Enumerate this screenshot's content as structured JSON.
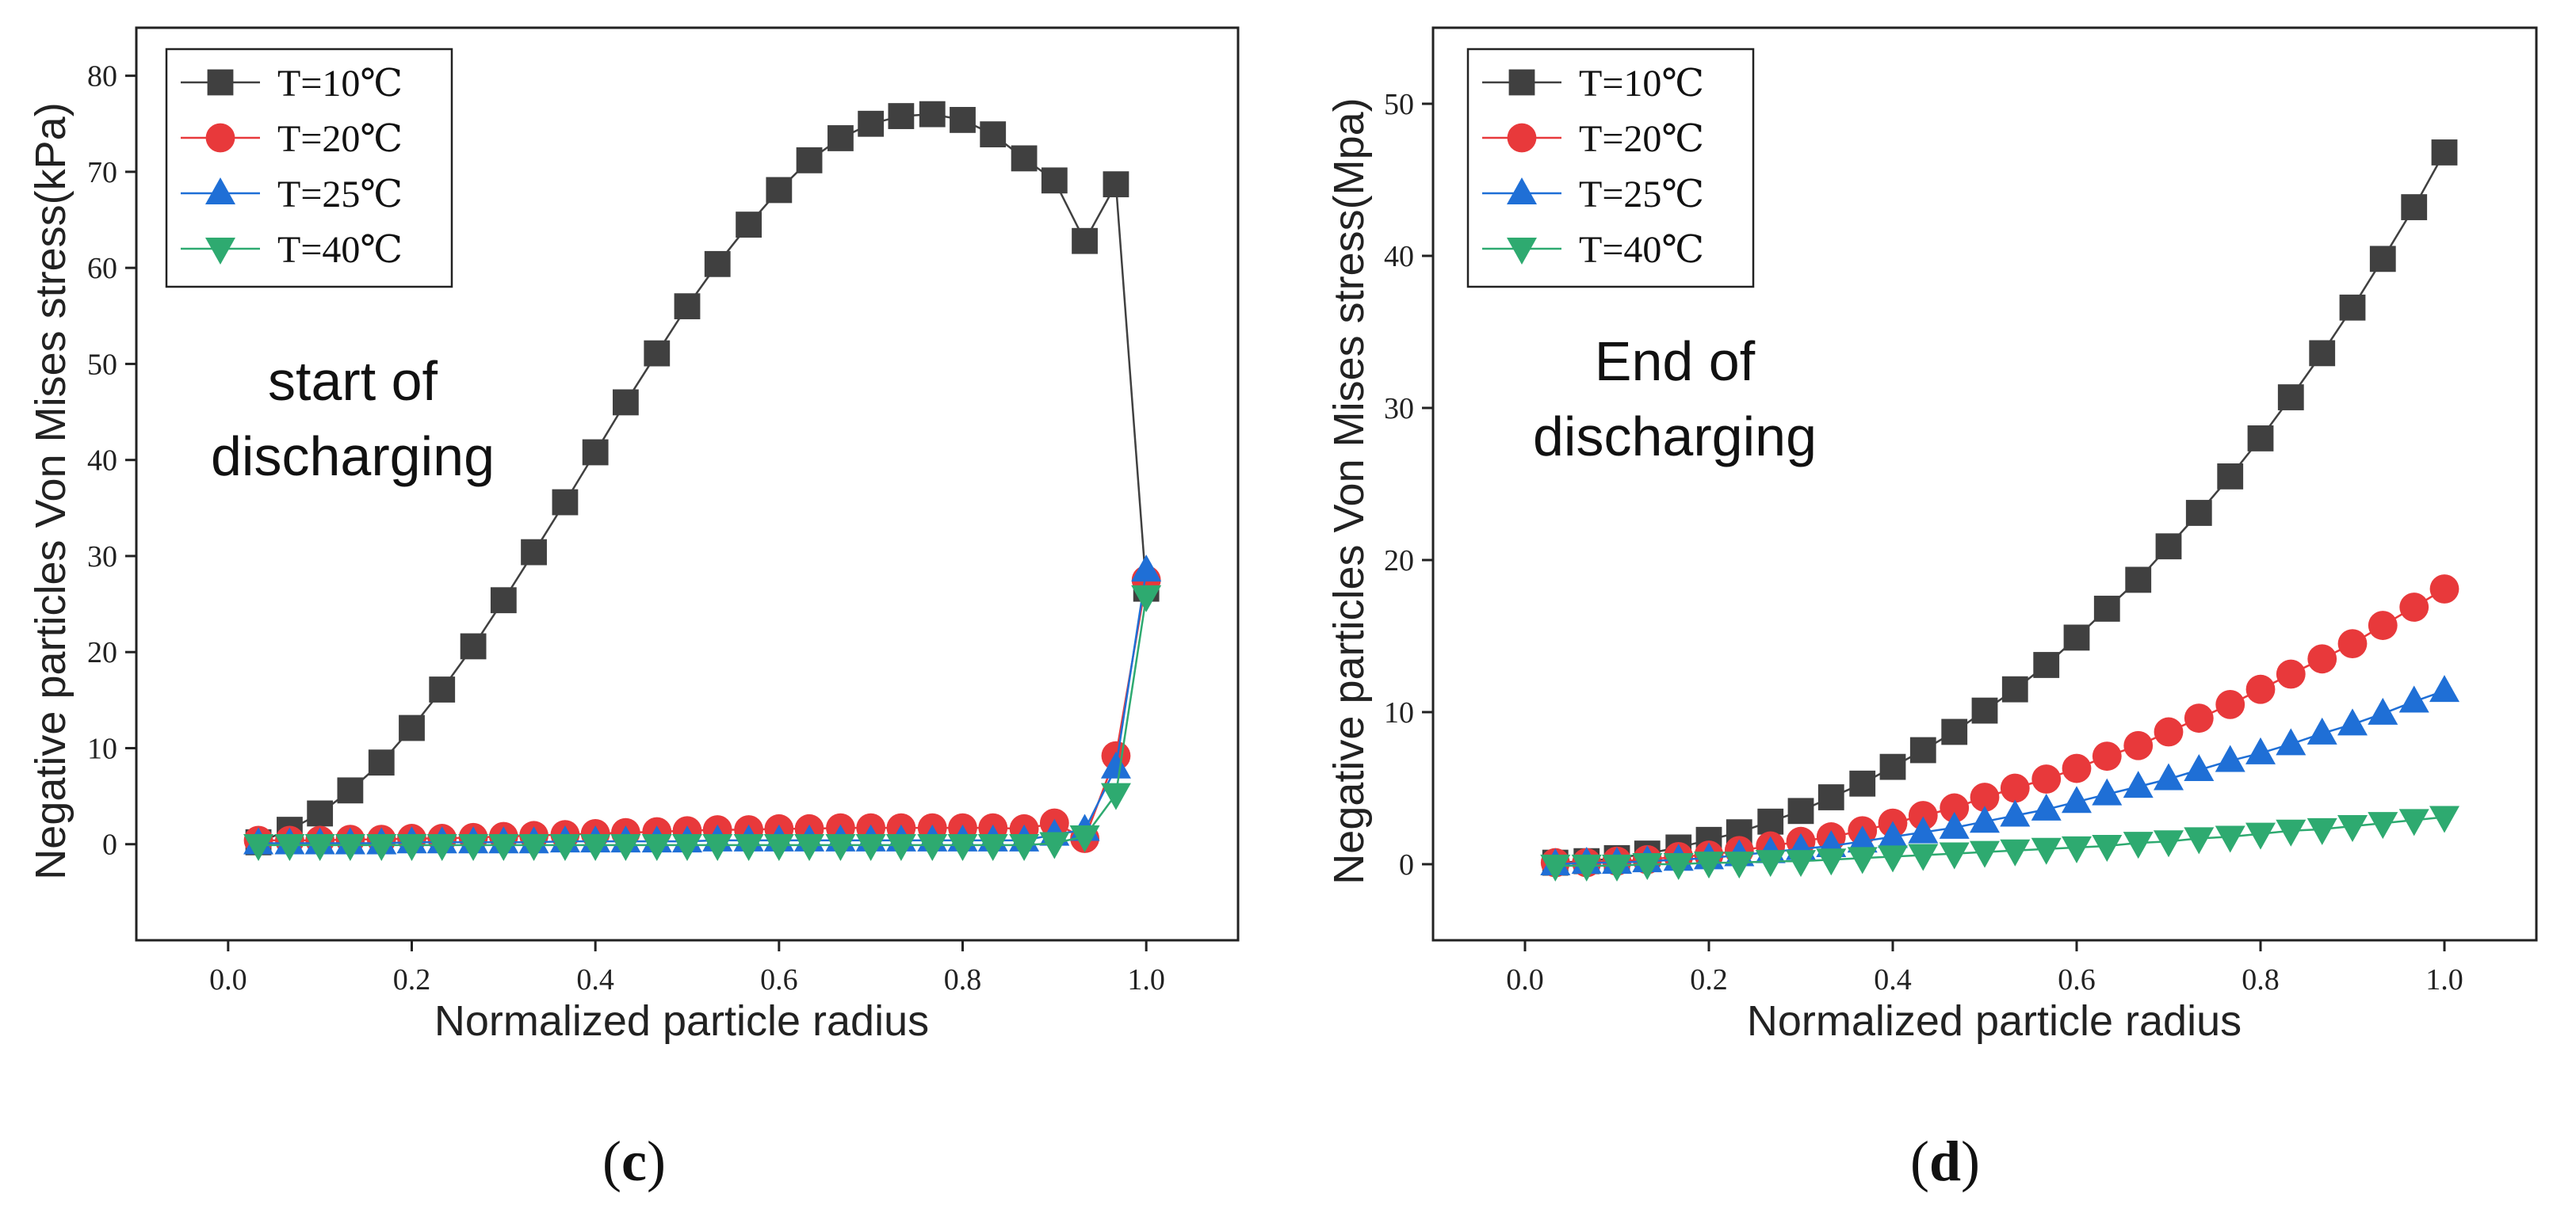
{
  "chart_data": [
    {
      "type": "line",
      "panel_label": "c",
      "xlabel": "Normalized particle radius",
      "ylabel": "Negative particles Von Mises stress(kPa)",
      "annotation": [
        "start of",
        "discharging"
      ],
      "xlim": [
        -0.1,
        1.1
      ],
      "ylim": [
        -10,
        85
      ],
      "xticks": [
        "0.0",
        "0.2",
        "0.4",
        "0.6",
        "0.8",
        "1.0"
      ],
      "yticks": [
        "0",
        "10",
        "20",
        "30",
        "40",
        "50",
        "60",
        "70",
        "80"
      ],
      "grid": false,
      "legend_position": "top-left",
      "x": [
        0.033,
        0.067,
        0.1,
        0.133,
        0.167,
        0.2,
        0.233,
        0.267,
        0.3,
        0.333,
        0.367,
        0.4,
        0.433,
        0.467,
        0.5,
        0.533,
        0.567,
        0.6,
        0.633,
        0.667,
        0.7,
        0.733,
        0.767,
        0.8,
        0.833,
        0.867,
        0.9,
        0.933,
        0.967,
        1.0
      ],
      "series": [
        {
          "name": "T=10℃",
          "marker": "square",
          "color": "#404040",
          "values": [
            0.2,
            1.5,
            3.2,
            5.6,
            8.5,
            12.1,
            16.1,
            20.6,
            25.4,
            30.4,
            35.6,
            40.8,
            46.0,
            51.1,
            56.0,
            60.4,
            64.5,
            68.1,
            71.2,
            73.5,
            75.0,
            75.8,
            76.0,
            75.4,
            73.9,
            71.4,
            69.1,
            62.8,
            68.7,
            26.6
          ]
        },
        {
          "name": "T=20℃",
          "marker": "circle",
          "color": "#e8393b",
          "values": [
            0.4,
            0.4,
            0.4,
            0.5,
            0.5,
            0.6,
            0.6,
            0.7,
            0.8,
            0.9,
            1.0,
            1.1,
            1.2,
            1.3,
            1.4,
            1.5,
            1.5,
            1.6,
            1.6,
            1.7,
            1.7,
            1.7,
            1.7,
            1.7,
            1.7,
            1.6,
            2.2,
            0.6,
            9.2,
            27.5
          ]
        },
        {
          "name": "T=25℃",
          "marker": "triangle-up",
          "color": "#1f6fd6",
          "values": [
            0.1,
            0.1,
            0.1,
            0.1,
            0.1,
            0.2,
            0.2,
            0.2,
            0.2,
            0.2,
            0.3,
            0.3,
            0.3,
            0.3,
            0.3,
            0.4,
            0.4,
            0.4,
            0.4,
            0.4,
            0.4,
            0.4,
            0.4,
            0.4,
            0.4,
            0.4,
            1.0,
            1.5,
            8.0,
            28.5
          ]
        },
        {
          "name": "T=40℃",
          "marker": "triangle-down",
          "color": "#2eaa70",
          "values": [
            -0.1,
            -0.1,
            -0.1,
            -0.1,
            -0.1,
            -0.1,
            -0.1,
            -0.1,
            -0.1,
            -0.1,
            -0.1,
            -0.1,
            -0.1,
            -0.1,
            -0.1,
            -0.1,
            -0.1,
            -0.1,
            -0.1,
            -0.1,
            -0.1,
            -0.1,
            -0.1,
            -0.1,
            -0.1,
            -0.1,
            0.1,
            0.8,
            5.2,
            25.8
          ]
        }
      ]
    },
    {
      "type": "line",
      "panel_label": "d",
      "xlabel": "Normalized particle radius",
      "ylabel": "Negative particles Von Mises stress(Mpa)",
      "annotation": [
        "End of",
        "discharging"
      ],
      "xlim": [
        -0.1,
        1.1
      ],
      "ylim": [
        -5,
        55
      ],
      "xticks": [
        "0.0",
        "0.2",
        "0.4",
        "0.6",
        "0.8",
        "1.0"
      ],
      "yticks": [
        "0",
        "10",
        "20",
        "30",
        "40",
        "50"
      ],
      "grid": false,
      "legend_position": "top-left",
      "x": [
        0.033,
        0.067,
        0.1,
        0.133,
        0.167,
        0.2,
        0.233,
        0.267,
        0.3,
        0.333,
        0.367,
        0.4,
        0.433,
        0.467,
        0.5,
        0.533,
        0.567,
        0.6,
        0.633,
        0.667,
        0.7,
        0.733,
        0.767,
        0.8,
        0.833,
        0.867,
        0.9,
        0.933,
        0.967,
        1.0
      ],
      "series": [
        {
          "name": "T=10℃",
          "marker": "square",
          "color": "#404040",
          "values": [
            0.1,
            0.2,
            0.4,
            0.7,
            1.1,
            1.6,
            2.1,
            2.8,
            3.5,
            4.4,
            5.3,
            6.4,
            7.5,
            8.7,
            10.1,
            11.5,
            13.1,
            14.9,
            16.8,
            18.7,
            20.9,
            23.1,
            25.5,
            28.0,
            30.7,
            33.6,
            36.6,
            39.8,
            43.2,
            46.8
          ]
        },
        {
          "name": "T=20℃",
          "marker": "circle",
          "color": "#e8393b",
          "values": [
            0.1,
            0.1,
            0.2,
            0.3,
            0.5,
            0.6,
            0.9,
            1.2,
            1.5,
            1.8,
            2.2,
            2.7,
            3.2,
            3.7,
            4.4,
            5.0,
            5.6,
            6.3,
            7.1,
            7.8,
            8.7,
            9.6,
            10.5,
            11.5,
            12.5,
            13.5,
            14.5,
            15.7,
            16.9,
            18.1
          ]
        },
        {
          "name": "T=25℃",
          "marker": "triangle-up",
          "color": "#1f6fd6",
          "values": [
            0.0,
            0.1,
            0.1,
            0.2,
            0.3,
            0.4,
            0.6,
            0.8,
            1.0,
            1.2,
            1.5,
            1.8,
            2.1,
            2.4,
            2.8,
            3.2,
            3.6,
            4.1,
            4.6,
            5.1,
            5.6,
            6.2,
            6.8,
            7.3,
            7.9,
            8.6,
            9.2,
            9.9,
            10.7,
            11.4
          ]
        },
        {
          "name": "T=40℃",
          "marker": "triangle-down",
          "color": "#2eaa70",
          "values": [
            -0.1,
            -0.1,
            -0.1,
            0.0,
            0.0,
            0.1,
            0.1,
            0.2,
            0.2,
            0.3,
            0.4,
            0.5,
            0.6,
            0.7,
            0.8,
            0.9,
            1.0,
            1.1,
            1.2,
            1.4,
            1.5,
            1.7,
            1.8,
            2.0,
            2.2,
            2.3,
            2.5,
            2.7,
            2.9,
            3.1
          ]
        }
      ]
    }
  ]
}
